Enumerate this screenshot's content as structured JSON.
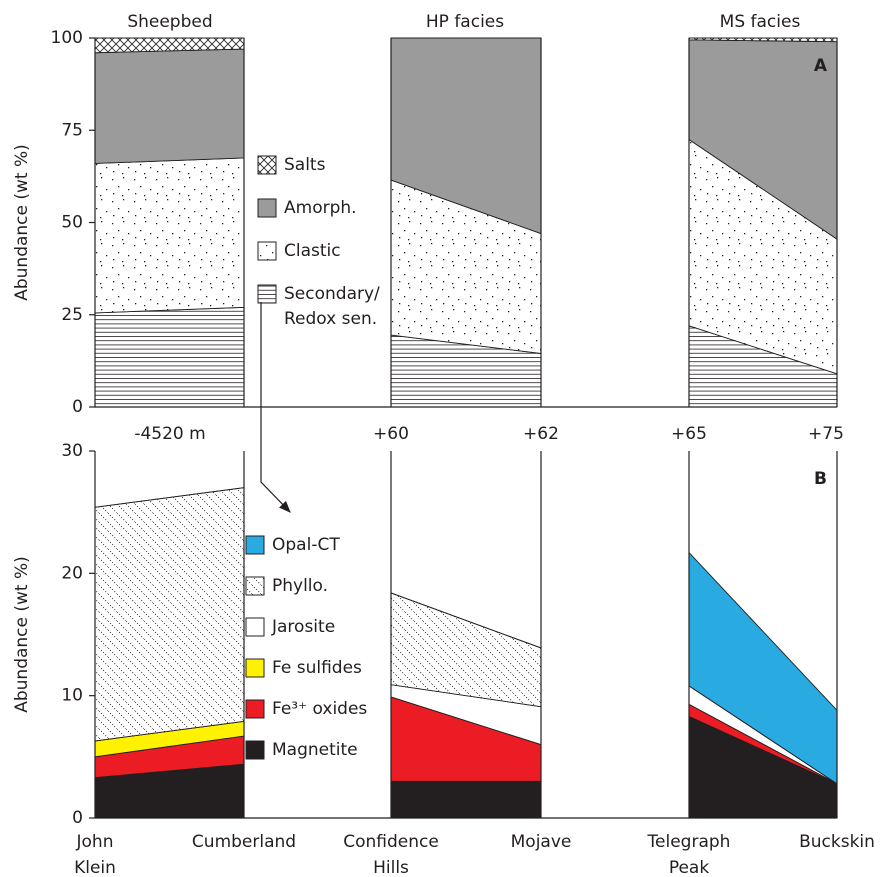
{
  "chart_data": [
    {
      "type": "area",
      "panel_label": "A",
      "ylabel": "Abundance (wt %)",
      "ylim": [
        0,
        100
      ],
      "yticks": [
        0,
        25,
        50,
        75,
        100
      ],
      "groups": [
        "Sheepbed",
        "HP facies",
        "MS facies"
      ],
      "elevations": [
        "-4520 m",
        "+60",
        "+62",
        "+65",
        "+75"
      ],
      "series": [
        {
          "name": "Secondary/Redox sen.",
          "color": "#ffffff",
          "pattern": "hlines",
          "values": [
            25.5,
            27,
            19.5,
            14.5,
            22,
            9
          ]
        },
        {
          "name": "Clastic",
          "color": "#ffffff",
          "pattern": "dots",
          "values": [
            40.5,
            40.5,
            42,
            32.5,
            50.5,
            36.5
          ]
        },
        {
          "name": "Amorph.",
          "color": "#9b9b9b",
          "values": [
            30,
            29.5,
            38.5,
            53,
            27,
            53.5
          ]
        },
        {
          "name": "Salts",
          "color": "#ffffff",
          "pattern": "crosshatch",
          "values": [
            4,
            3,
            0,
            0,
            0.5,
            1
          ]
        }
      ]
    },
    {
      "type": "area",
      "panel_label": "B",
      "ylabel": "Abundance (wt %)",
      "ylim": [
        0,
        30
      ],
      "yticks": [
        0,
        10,
        20,
        30
      ],
      "categories": [
        "John Klein",
        "Cumberland",
        "Confidence Hills",
        "Mojave",
        "Telegraph Peak",
        "Buckskin"
      ],
      "series": [
        {
          "name": "Magnetite",
          "color": "#231f20",
          "values": [
            3.3,
            4.4,
            3,
            3,
            8.3,
            2.8
          ]
        },
        {
          "name": "Fe³⁺ oxides",
          "color": "#ec1c24",
          "values": [
            1.7,
            2.3,
            6.9,
            3,
            1,
            0
          ]
        },
        {
          "name": "Fe sulfides",
          "color": "#fff200",
          "values": [
            1.3,
            1.2,
            0,
            0,
            0,
            0
          ]
        },
        {
          "name": "Jarosite",
          "color": "#ffffff",
          "values": [
            0,
            0,
            1,
            3.1,
            1.5,
            0
          ]
        },
        {
          "name": "Phyllo.",
          "color": "#ffffff",
          "pattern": "diag",
          "values": [
            19.1,
            19.1,
            7.5,
            4.8,
            0,
            0
          ]
        },
        {
          "name": "Opal-CT",
          "color": "#29abe2",
          "values": [
            0,
            0,
            0,
            0,
            10.9,
            6
          ]
        }
      ]
    }
  ]
}
